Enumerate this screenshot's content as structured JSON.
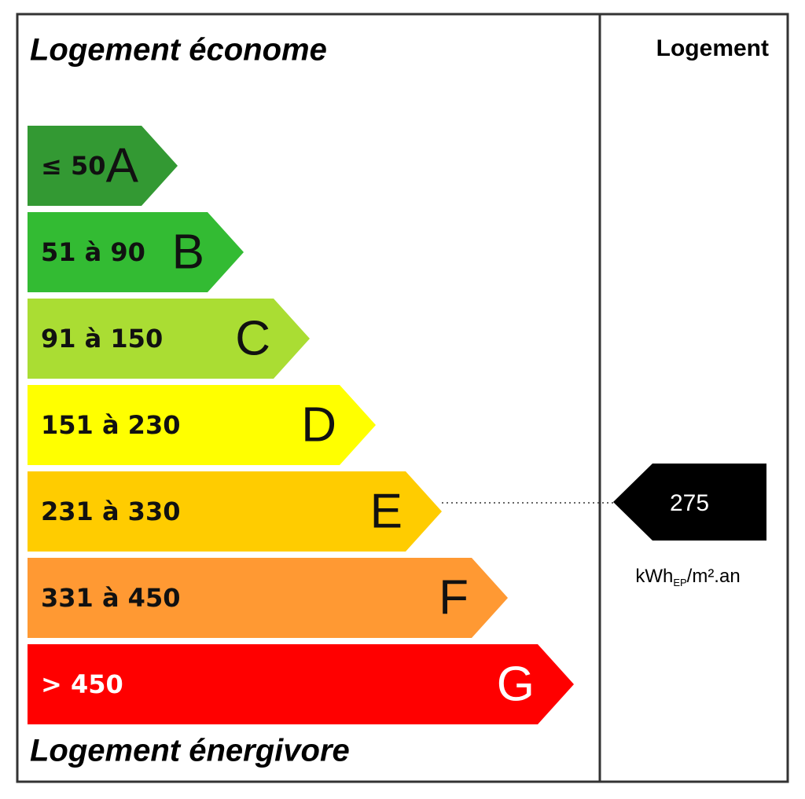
{
  "header": {
    "top": "Logement économe",
    "bottom": "Logement énergivore",
    "column": "Logement"
  },
  "classes": [
    {
      "range": "≤ 50",
      "letter": "A",
      "color": "#339933"
    },
    {
      "range": "51 à 90",
      "letter": "B",
      "color": "#33bb33"
    },
    {
      "range": "91 à 150",
      "letter": "C",
      "color": "#aadd33"
    },
    {
      "range": "151 à 230",
      "letter": "D",
      "color": "#ffff00"
    },
    {
      "range": "231 à 330",
      "letter": "E",
      "color": "#ffcc00"
    },
    {
      "range": "331 à 450",
      "letter": "F",
      "color": "#ff9933"
    },
    {
      "range": "> 450",
      "letter": "G",
      "color": "#ff0000"
    }
  ],
  "rating": {
    "value": "275",
    "unit": {
      "base": "kWh",
      "sub": "EP",
      "rest": "/m².an"
    }
  }
}
